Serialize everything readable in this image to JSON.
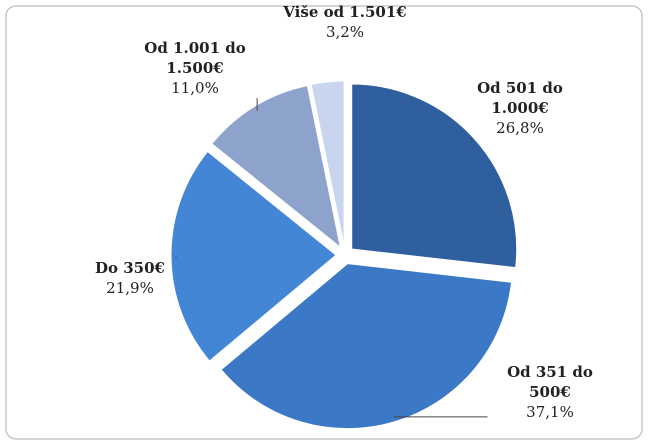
{
  "chart_data": {
    "type": "pie",
    "categories": [
      "Od 501 do 1.000€",
      "Od 351 do 500€",
      "Do 350€",
      "Od 1.001 do 1.500€",
      "Više od 1.501€"
    ],
    "values": [
      26.8,
      37.1,
      21.9,
      11.0,
      3.2
    ],
    "value_labels": [
      "26,8%",
      "37,1%",
      "21,9%",
      "11,0%",
      "3,2%"
    ],
    "colors": [
      "#2f5f9f",
      "#3b78c6",
      "#4486d6",
      "#8ea3cc",
      "#c9d5ee"
    ]
  }
}
